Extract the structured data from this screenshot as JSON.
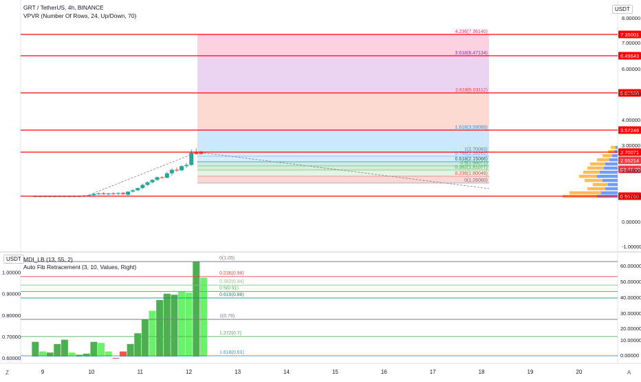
{
  "header": {
    "symbol_line": "GRT / TetherUS, 4h, BINANCE",
    "indicator_line": "VPVR (Number Of Rows, 24, Up/Down, 70)",
    "currency_badge": "USDT"
  },
  "lower_header": {
    "currency_badge": "USDT",
    "indicator_line": "MDI_LB (13, 55, 2)",
    "fib_line": "Auto Fib Retracement (3, 10, Values, Right)"
  },
  "corner": {
    "left": "Z",
    "right": "A"
  },
  "colors": {
    "up": "#26a69a",
    "down": "#ef5350",
    "red_line": "#ff0000",
    "bar_green": "#4caf50",
    "bar_bright": "#69f36a",
    "bar_red": "#ef5350",
    "vp_up": "#2962ff",
    "vp_down": "#ff9800"
  },
  "chart_data": [
    {
      "type": "candlestick",
      "y_scale": "log",
      "ylim": [
        -1.0,
        8.0
      ],
      "y_ticks": [
        "8.00000",
        "7.00000",
        "6.00000",
        "5.00000",
        "4.00000",
        "3.00000",
        "2.00000",
        "1.00000",
        "0.00000",
        "-1.00000"
      ],
      "x_ticks": [
        "9",
        "10",
        "11",
        "12",
        "13",
        "14",
        "15",
        "16",
        "17",
        "18",
        "19",
        "20"
      ],
      "price_labels": [
        "7.35001",
        "6.49643",
        "5.02536",
        "3.57246",
        "2.70071",
        "2.55214",
        "02:41:20",
        "0.96784"
      ],
      "horizontal_lines": [
        7.35001,
        6.49643,
        5.02536,
        3.57246,
        2.70071,
        0.96784
      ],
      "fib_extension_labels": [
        "4.236(7.36140)",
        "3.618(6.47134)",
        "2.618(5.03112)",
        "1.618(3.59089)",
        "1(2.70083)",
        "0.786(2.39262)",
        "0.618(2.15066)",
        "0.5(1.98071)",
        "0.382(1.81077)",
        "0.236(1.60049)",
        "0(1.26060)"
      ],
      "fib_levels": [
        7.3614,
        6.47134,
        5.03112,
        3.59089,
        2.70083,
        2.39262,
        2.15066,
        1.98071,
        1.81077,
        1.60049,
        1.2606
      ],
      "candles_x": [
        8.85,
        8.95,
        9.05,
        9.15,
        9.25,
        9.35,
        9.45,
        9.55,
        9.65,
        9.75,
        9.85,
        9.95,
        10.05,
        10.15,
        10.25,
        10.35,
        10.45,
        10.55,
        10.65,
        10.75,
        10.85,
        10.95,
        11.05,
        11.15,
        11.25,
        11.35,
        11.45,
        11.55,
        11.65,
        11.75,
        11.85,
        11.95,
        12.05,
        12.15,
        12.25
      ],
      "candles": [
        {
          "o": 0.97,
          "h": 0.98,
          "l": 0.96,
          "c": 0.97
        },
        {
          "o": 0.97,
          "h": 0.98,
          "l": 0.96,
          "c": 0.97
        },
        {
          "o": 0.97,
          "h": 0.98,
          "l": 0.96,
          "c": 0.97
        },
        {
          "o": 0.97,
          "h": 0.98,
          "l": 0.96,
          "c": 0.97
        },
        {
          "o": 0.97,
          "h": 0.98,
          "l": 0.96,
          "c": 0.97
        },
        {
          "o": 0.97,
          "h": 0.98,
          "l": 0.96,
          "c": 0.97
        },
        {
          "o": 0.97,
          "h": 0.98,
          "l": 0.96,
          "c": 0.97
        },
        {
          "o": 0.97,
          "h": 0.98,
          "l": 0.96,
          "c": 0.97
        },
        {
          "o": 0.97,
          "h": 0.98,
          "l": 0.96,
          "c": 0.97
        },
        {
          "o": 0.97,
          "h": 0.98,
          "l": 0.96,
          "c": 0.97
        },
        {
          "o": 0.97,
          "h": 0.99,
          "l": 0.96,
          "c": 0.98
        },
        {
          "o": 0.98,
          "h": 1.0,
          "l": 0.97,
          "c": 0.99
        },
        {
          "o": 0.99,
          "h": 1.03,
          "l": 0.97,
          "c": 1.02
        },
        {
          "o": 1.02,
          "h": 1.05,
          "l": 1.0,
          "c": 1.03
        },
        {
          "o": 1.03,
          "h": 1.06,
          "l": 1.0,
          "c": 1.01
        },
        {
          "o": 1.01,
          "h": 1.04,
          "l": 0.99,
          "c": 1.03
        },
        {
          "o": 1.03,
          "h": 1.06,
          "l": 1.0,
          "c": 1.02
        },
        {
          "o": 1.02,
          "h": 1.05,
          "l": 0.99,
          "c": 1.04
        },
        {
          "o": 1.04,
          "h": 1.06,
          "l": 1.0,
          "c": 1.01
        },
        {
          "o": 1.0,
          "h": 1.08,
          "l": 0.98,
          "c": 1.07
        },
        {
          "o": 1.07,
          "h": 1.12,
          "l": 1.05,
          "c": 1.1
        },
        {
          "o": 1.1,
          "h": 1.16,
          "l": 1.08,
          "c": 1.15
        },
        {
          "o": 1.15,
          "h": 1.25,
          "l": 1.13,
          "c": 1.22
        },
        {
          "o": 1.22,
          "h": 1.35,
          "l": 1.2,
          "c": 1.3
        },
        {
          "o": 1.3,
          "h": 1.45,
          "l": 1.26,
          "c": 1.42
        },
        {
          "o": 1.42,
          "h": 1.58,
          "l": 1.38,
          "c": 1.55
        },
        {
          "o": 1.55,
          "h": 1.6,
          "l": 1.48,
          "c": 1.52
        },
        {
          "o": 1.52,
          "h": 1.75,
          "l": 1.5,
          "c": 1.7
        },
        {
          "o": 1.7,
          "h": 1.88,
          "l": 1.62,
          "c": 1.82
        },
        {
          "o": 1.82,
          "h": 1.92,
          "l": 1.75,
          "c": 1.8
        },
        {
          "o": 1.8,
          "h": 2.0,
          "l": 1.76,
          "c": 1.97
        },
        {
          "o": 1.97,
          "h": 2.1,
          "l": 1.9,
          "c": 2.02
        },
        {
          "o": 2.02,
          "h": 2.8,
          "l": 1.98,
          "c": 2.65
        },
        {
          "o": 2.7,
          "h": 2.85,
          "l": 2.5,
          "c": 2.55
        },
        {
          "o": 2.7,
          "h": 2.75,
          "l": 2.52,
          "c": 2.55
        }
      ]
    },
    {
      "type": "bar",
      "ylim": [
        0.6,
        1.05
      ],
      "y_ticks_left": [
        "1.00000",
        "0.90000",
        "0.80000",
        "0.70000",
        "0.60000"
      ],
      "y_ticks_right": [
        "60.00000",
        "50.00000",
        "40.00000",
        "30.00000",
        "20.00000",
        "10.00000",
        "0.00000"
      ],
      "fib_labels": [
        "0(1.05)",
        "0.236(0.98)",
        "0.382(0.94)",
        "0.5(0.91)",
        "0.618(0.88)",
        "1(0.78)",
        "1.272(0.7)",
        "1.618(0.61)"
      ],
      "fib_levels": [
        1.05,
        0.98,
        0.94,
        0.91,
        0.88,
        0.78,
        0.7,
        0.61
      ],
      "x": [
        8.85,
        9.0,
        9.15,
        9.3,
        9.45,
        9.6,
        9.75,
        9.9,
        10.05,
        10.2,
        10.35,
        10.5,
        10.65,
        10.8,
        10.95,
        11.1,
        11.25,
        11.4,
        11.55,
        11.7,
        11.85,
        12.0,
        12.15,
        12.3
      ],
      "values": [
        0.675,
        0.63,
        0.625,
        0.665,
        0.685,
        0.625,
        0.615,
        0.62,
        0.675,
        0.67,
        0.63,
        0.6,
        0.63,
        0.665,
        0.715,
        0.78,
        0.82,
        0.87,
        0.9,
        0.895,
        0.91,
        0.905,
        1.05,
        0.975
      ],
      "colors": [
        "green",
        "bright",
        "green",
        "green",
        "green",
        "bright",
        "green",
        "green",
        "green",
        "bright",
        "bright",
        "red",
        "red",
        "green",
        "green",
        "green",
        "bright",
        "green",
        "green",
        "green",
        "bright",
        "bright",
        "green",
        "bright"
      ]
    }
  ]
}
